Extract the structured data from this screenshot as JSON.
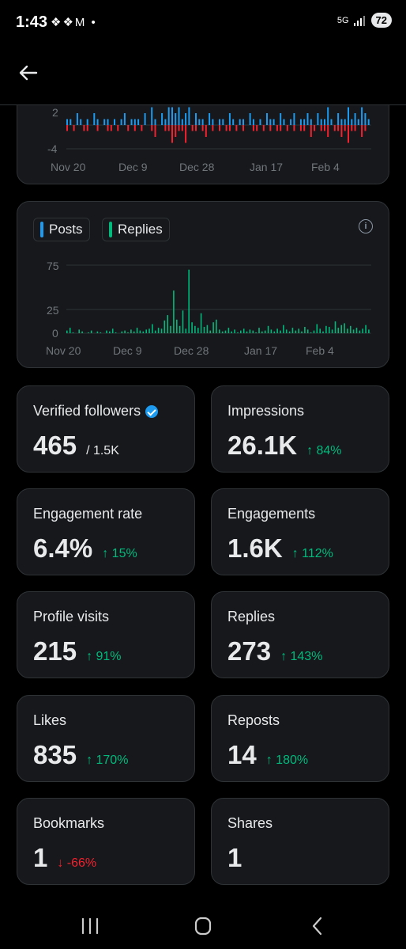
{
  "status_bar": {
    "time": "1:43",
    "notifications": "❖❖M •",
    "network": "5G",
    "battery": "72"
  },
  "chart_top": {
    "x_ticks": [
      "Nov 20",
      "Dec 9",
      "Dec 28",
      "Jan 17",
      "Feb 4"
    ],
    "y_ticks": [
      "2",
      "-4"
    ]
  },
  "chart_activity": {
    "legend": {
      "posts": "Posts",
      "replies": "Replies"
    },
    "x_ticks": [
      "Nov 20",
      "Dec 9",
      "Dec 28",
      "Jan 17",
      "Feb 4"
    ],
    "y_ticks": [
      "75",
      "25",
      "0"
    ],
    "colors": {
      "posts": "#1d9bf0",
      "replies": "#00ba7c"
    }
  },
  "chart_data": [
    {
      "type": "bar",
      "x_ticks": [
        "Nov 20",
        "Dec 9",
        "Dec 28",
        "Jan 17",
        "Feb 4"
      ],
      "y_ticks": [
        2,
        -4
      ],
      "series": [
        {
          "color": "#1d9bf0",
          "values": [
            1,
            1,
            0,
            2,
            1,
            0,
            1,
            0,
            2,
            1,
            0,
            1,
            1,
            0,
            1,
            0,
            1,
            2,
            0,
            1,
            1,
            1,
            0,
            2,
            0,
            3,
            1,
            0,
            2,
            1,
            3,
            3,
            2,
            3,
            1,
            2,
            3,
            0,
            2,
            1,
            1,
            0,
            2,
            1,
            0,
            1,
            1,
            0,
            2,
            1,
            0,
            1,
            1,
            0,
            2,
            1,
            0,
            1,
            0,
            2,
            1,
            1,
            0,
            2,
            1,
            0,
            1,
            2,
            0,
            1,
            1,
            2,
            1,
            0,
            2,
            1,
            1,
            3,
            1,
            0,
            2,
            1,
            1,
            3,
            1,
            2,
            1,
            3,
            2,
            1
          ]
        },
        {
          "color": "#f4212e",
          "values": [
            -1,
            0,
            -1,
            0,
            0,
            -1,
            -1,
            0,
            0,
            -1,
            0,
            0,
            -1,
            -1,
            0,
            -1,
            0,
            0,
            -1,
            0,
            -1,
            0,
            -1,
            0,
            0,
            -1,
            -2,
            0,
            0,
            -1,
            -1,
            -3,
            -2,
            -1,
            -1,
            -3,
            0,
            -1,
            -1,
            0,
            -1,
            -2,
            0,
            -1,
            0,
            -1,
            0,
            -1,
            -1,
            0,
            -1,
            0,
            -1,
            0,
            0,
            -1,
            -1,
            0,
            -1,
            0,
            -1,
            0,
            -1,
            -1,
            0,
            -1,
            0,
            -1,
            0,
            -1,
            -1,
            0,
            -2,
            -1,
            0,
            -1,
            -1,
            -2,
            0,
            -1,
            -1,
            -2,
            -1,
            -3,
            -1,
            -1,
            0,
            -2,
            -1,
            0
          ]
        }
      ]
    },
    {
      "type": "bar",
      "x_ticks": [
        "Nov 20",
        "Dec 9",
        "Dec 28",
        "Jan 17",
        "Feb 4"
      ],
      "y_ticks": [
        75,
        25,
        0
      ],
      "series": [
        {
          "name": "Posts",
          "color": "#1d9bf0",
          "values": []
        },
        {
          "name": "Replies",
          "color": "#00ba7c",
          "values": [
            3,
            6,
            1,
            0,
            4,
            2,
            0,
            1,
            3,
            0,
            2,
            1,
            0,
            3,
            2,
            5,
            1,
            0,
            2,
            3,
            1,
            4,
            2,
            6,
            3,
            2,
            4,
            5,
            10,
            3,
            6,
            5,
            14,
            20,
            8,
            47,
            15,
            8,
            25,
            5,
            70,
            12,
            8,
            6,
            22,
            7,
            9,
            3,
            12,
            15,
            4,
            2,
            3,
            6,
            2,
            4,
            1,
            3,
            5,
            2,
            4,
            3,
            1,
            6,
            2,
            3,
            8,
            4,
            2,
            5,
            3,
            9,
            4,
            2,
            6,
            3,
            5,
            2,
            7,
            4,
            1,
            3,
            10,
            5,
            2,
            8,
            7,
            4,
            13,
            6,
            9,
            11,
            5,
            8,
            4,
            6,
            3,
            5,
            9,
            4
          ]
        }
      ]
    }
  ],
  "stats": [
    {
      "label": "Verified followers",
      "value": "465",
      "sub": "/ 1.5K",
      "change": "",
      "verified": true
    },
    {
      "label": "Impressions",
      "value": "26.1K",
      "sub": "",
      "change": "↑ 84%"
    },
    {
      "label": "Engagement rate",
      "value": "6.4%",
      "sub": "",
      "change": "↑ 15%"
    },
    {
      "label": "Engagements",
      "value": "1.6K",
      "sub": "",
      "change": "↑ 112%"
    },
    {
      "label": "Profile visits",
      "value": "215",
      "sub": "",
      "change": "↑ 91%"
    },
    {
      "label": "Replies",
      "value": "273",
      "sub": "",
      "change": "↑ 143%"
    },
    {
      "label": "Likes",
      "value": "835",
      "sub": "",
      "change": "↑ 170%"
    },
    {
      "label": "Reposts",
      "value": "14",
      "sub": "",
      "change": "↑ 180%"
    },
    {
      "label": "Bookmarks",
      "value": "1",
      "sub": "",
      "change": "↓ -66%",
      "negative": true
    },
    {
      "label": "Shares",
      "value": "1",
      "sub": "",
      "change": ""
    }
  ]
}
